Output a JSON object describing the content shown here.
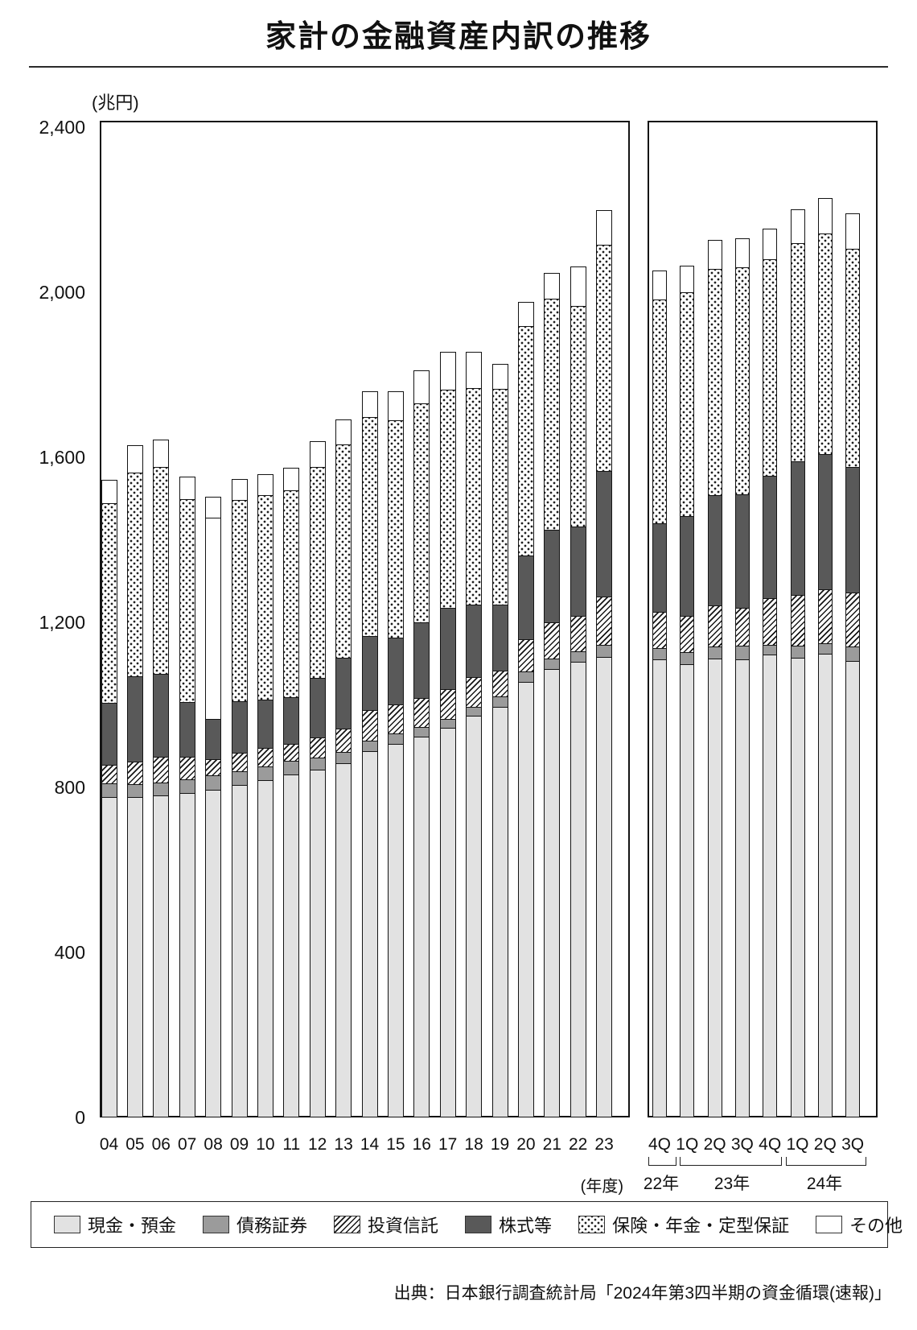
{
  "title": "家計の金融資産内訳の推移",
  "unit_label": "(兆円)",
  "source": "出典：日本銀行調査統計局「2024年第3四半期の資金循環(速報)」",
  "y_axis": {
    "ticks": [
      {
        "label": "2,400",
        "value": 2400
      },
      {
        "label": "2,000",
        "value": 2000
      },
      {
        "label": "1,600",
        "value": 1600
      },
      {
        "label": "1,200",
        "value": 1200
      },
      {
        "label": "800",
        "value": 800
      },
      {
        "label": "400",
        "value": 400
      },
      {
        "label": "0",
        "value": 0
      }
    ]
  },
  "x_axis": {
    "panel1_note": "(年度)",
    "groups": [
      {
        "label": "22年"
      },
      {
        "label": "23年"
      },
      {
        "label": "24年"
      }
    ]
  },
  "legend": {
    "items": [
      {
        "key": "cash",
        "label": "現金・預金"
      },
      {
        "key": "bonds",
        "label": "債務証券"
      },
      {
        "key": "trusts",
        "label": "投資信託"
      },
      {
        "key": "equities",
        "label": "株式等"
      },
      {
        "key": "insurance",
        "label": "保険・年金・定型保証"
      },
      {
        "key": "other",
        "label": "その他"
      }
    ]
  },
  "chart_data": {
    "type": "bar",
    "subtype": "stacked-vertical",
    "unit": "兆円",
    "ylim": [
      0,
      2400
    ],
    "grid": false,
    "legend_position": "bottom",
    "series_labels": [
      "現金・預金",
      "債務証券",
      "投資信託",
      "株式等",
      "保険・年金・定型保証",
      "その他"
    ],
    "series_keys": [
      "cash",
      "bonds",
      "trusts",
      "equities",
      "insurance",
      "other"
    ],
    "colors": {
      "cash": "#e2e2e2",
      "bonds": "#9b9b9b",
      "trusts": "hatch-diagonal",
      "equities": "#595959",
      "insurance": "dots-on-white",
      "other": "#ffffff",
      "outline": "#141414"
    },
    "panels": [
      {
        "id": "fy",
        "axis_note": "(年度)",
        "categories": [
          "04",
          "05",
          "06",
          "07",
          "08",
          "09",
          "10",
          "11",
          "12",
          "13",
          "14",
          "15",
          "16",
          "17",
          "18",
          "19",
          "20",
          "21",
          "22",
          "23"
        ],
        "values": [
          [
            780,
            33,
            45,
            150,
            483,
            55
          ],
          [
            779,
            30,
            56,
            205,
            494,
            65
          ],
          [
            782,
            30,
            63,
            202,
            500,
            65
          ],
          [
            790,
            32,
            54,
            134,
            492,
            52
          ],
          [
            797,
            35,
            39,
            97,
            488,
            49
          ],
          [
            808,
            34,
            45,
            124,
            489,
            48
          ],
          [
            821,
            33,
            45,
            116,
            496,
            49
          ],
          [
            834,
            32,
            42,
            112,
            502,
            53
          ],
          [
            845,
            31,
            48,
            145,
            510,
            61
          ],
          [
            860,
            28,
            56,
            172,
            518,
            58
          ],
          [
            890,
            26,
            73,
            180,
            530,
            61
          ],
          [
            908,
            25,
            69,
            163,
            526,
            69
          ],
          [
            925,
            23,
            70,
            184,
            530,
            78
          ],
          [
            945,
            22,
            73,
            197,
            529,
            89
          ],
          [
            974,
            23,
            72,
            176,
            525,
            85
          ],
          [
            997,
            25,
            63,
            160,
            523,
            58
          ],
          [
            1058,
            25,
            78,
            204,
            555,
            57
          ],
          [
            1088,
            26,
            88,
            225,
            560,
            60
          ],
          [
            1106,
            27,
            86,
            216,
            535,
            93
          ],
          [
            1118,
            29,
            117,
            305,
            548,
            82
          ]
        ],
        "plain_insurance_categories": [
          "08"
        ]
      },
      {
        "id": "quarterly",
        "categories": [
          "4Q",
          "1Q",
          "2Q",
          "3Q",
          "4Q",
          "1Q",
          "2Q",
          "3Q"
        ],
        "group_spans": [
          {
            "label": "22年",
            "from": 0,
            "to": 0
          },
          {
            "label": "23年",
            "from": 1,
            "to": 4
          },
          {
            "label": "24年",
            "from": 5,
            "to": 7
          }
        ],
        "values": [
          [
            1111,
            27,
            89,
            214,
            543,
            68
          ],
          [
            1100,
            30,
            87,
            243,
            542,
            62
          ],
          [
            1114,
            29,
            100,
            267,
            548,
            68
          ],
          [
            1111,
            33,
            93,
            275,
            550,
            68
          ],
          [
            1124,
            24,
            112,
            296,
            526,
            72
          ],
          [
            1116,
            28,
            124,
            324,
            528,
            80
          ],
          [
            1126,
            24,
            132,
            328,
            535,
            83
          ],
          [
            1110,
            34,
            130,
            305,
            530,
            83
          ]
        ],
        "plain_insurance_categories": []
      }
    ]
  }
}
